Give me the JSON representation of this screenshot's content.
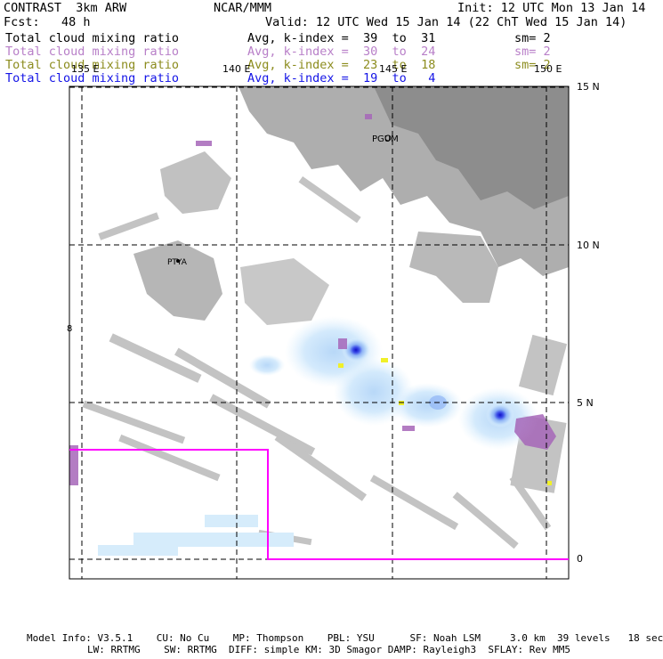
{
  "header": {
    "title": "CONTRAST  3km ARW",
    "center": "NCAR/MMM",
    "init": "Init: 12 UTC Mon 13 Jan 14",
    "fcst": "Fcst:   48 h",
    "valid": "Valid: 12 UTC Wed 15 Jan 14 (22 ChT Wed 15 Jan 14)"
  },
  "legend": [
    {
      "field": "Total cloud mixing ratio",
      "avg": "Avg, k-index =  39  to  31",
      "sm": "sm= 2",
      "color": "#000000"
    },
    {
      "field": "Total cloud mixing ratio",
      "avg": "Avg, k-index =  30  to  24",
      "sm": "sm= 2",
      "color": "#b87fc8"
    },
    {
      "field": "Total cloud mixing ratio",
      "avg": "Avg, k-index =  23  to  18",
      "sm": "sm= 2",
      "color": "#8c8c1e"
    },
    {
      "field": "Total cloud mixing ratio",
      "avg": "Avg, k-index =  19  to   4",
      "sm": "",
      "color": "#1414e6"
    }
  ],
  "map": {
    "lon_labels": [
      "135 E",
      "140 E",
      "145 E",
      "150 E"
    ],
    "lat_labels": [
      "15 N",
      "10 N",
      "5 N",
      "0"
    ],
    "stations": [
      "PGUM",
      "PTYA"
    ],
    "domain_color": "#ff00ff"
  },
  "footer": {
    "line1": "Model Info: V3.5.1    CU: No Cu    MP: Thompson    PBL: YSU      SF: Noah LSM     3.0 km  39 levels   18 sec",
    "line2": "LW: RRTMG    SW: RRTMG  DIFF: simple KM: 3D Smagor DAMP: Rayleigh3  SFLAY: Rev MM5"
  }
}
